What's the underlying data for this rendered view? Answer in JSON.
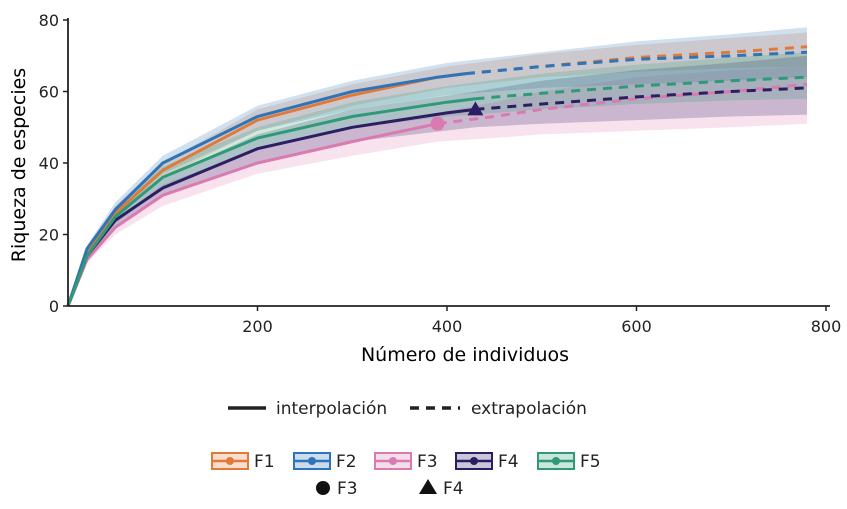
{
  "chart_data": {
    "type": "line",
    "xlabel": "Número de individuos",
    "ylabel": "Riqueza de especies",
    "xlim": [
      0,
      800
    ],
    "ylim": [
      0,
      80
    ],
    "x_ticks": [
      200,
      400,
      600,
      800
    ],
    "y_ticks": [
      0,
      20,
      40,
      60,
      80
    ],
    "grid": false,
    "legend_position": "bottom",
    "line_styles": {
      "interpolation_label": "interpolación",
      "extrapolation_label": "extrapolación"
    },
    "series": [
      {
        "name": "F1",
        "color": "#e07a3a",
        "interpolation": [
          [
            0,
            0
          ],
          [
            20,
            15
          ],
          [
            50,
            26
          ],
          [
            100,
            38
          ],
          [
            200,
            52
          ],
          [
            300,
            59
          ],
          [
            390,
            64
          ],
          [
            420,
            65
          ]
        ],
        "extrapolation": [
          [
            420,
            65
          ],
          [
            500,
            67
          ],
          [
            600,
            69.5
          ],
          [
            700,
            71
          ],
          [
            780,
            72.5
          ]
        ],
        "ci_lower": [
          [
            0,
            0
          ],
          [
            20,
            14
          ],
          [
            50,
            24
          ],
          [
            100,
            36
          ],
          [
            200,
            49
          ],
          [
            300,
            56
          ],
          [
            400,
            61
          ],
          [
            500,
            64
          ],
          [
            600,
            65.5
          ],
          [
            700,
            66.5
          ],
          [
            780,
            67
          ]
        ],
        "ci_upper": [
          [
            0,
            0
          ],
          [
            20,
            16
          ],
          [
            50,
            28
          ],
          [
            100,
            40
          ],
          [
            200,
            55
          ],
          [
            300,
            62
          ],
          [
            400,
            67
          ],
          [
            500,
            70.5
          ],
          [
            600,
            73
          ],
          [
            700,
            75
          ],
          [
            780,
            76.5
          ]
        ]
      },
      {
        "name": "F2",
        "color": "#2f73b8",
        "interpolation": [
          [
            0,
            0
          ],
          [
            20,
            16
          ],
          [
            50,
            27
          ],
          [
            100,
            40
          ],
          [
            200,
            53
          ],
          [
            300,
            60
          ],
          [
            390,
            64
          ],
          [
            420,
            65
          ]
        ],
        "extrapolation": [
          [
            420,
            65
          ],
          [
            500,
            67
          ],
          [
            600,
            69
          ],
          [
            700,
            70
          ],
          [
            780,
            71
          ]
        ],
        "ci_lower": [
          [
            0,
            0
          ],
          [
            20,
            15
          ],
          [
            50,
            25
          ],
          [
            100,
            37
          ],
          [
            200,
            49
          ],
          [
            300,
            55
          ],
          [
            400,
            59
          ],
          [
            500,
            61
          ],
          [
            600,
            62
          ],
          [
            700,
            63
          ],
          [
            780,
            64
          ]
        ],
        "ci_upper": [
          [
            0,
            0
          ],
          [
            20,
            17
          ],
          [
            50,
            29
          ],
          [
            100,
            42
          ],
          [
            200,
            56
          ],
          [
            300,
            63
          ],
          [
            400,
            68
          ],
          [
            500,
            71
          ],
          [
            600,
            74
          ],
          [
            700,
            76
          ],
          [
            780,
            78
          ]
        ]
      },
      {
        "name": "F3",
        "color": "#d97ab0",
        "interpolation": [
          [
            0,
            0
          ],
          [
            20,
            13
          ],
          [
            50,
            22
          ],
          [
            100,
            31
          ],
          [
            200,
            40
          ],
          [
            300,
            46
          ],
          [
            390,
            51
          ]
        ],
        "extrapolation": [
          [
            390,
            51
          ],
          [
            450,
            53
          ],
          [
            500,
            55
          ],
          [
            600,
            58
          ],
          [
            700,
            60
          ],
          [
            780,
            62
          ]
        ],
        "ci_lower": [
          [
            0,
            0
          ],
          [
            20,
            12
          ],
          [
            50,
            20
          ],
          [
            100,
            28
          ],
          [
            200,
            37
          ],
          [
            300,
            42
          ],
          [
            390,
            46
          ],
          [
            450,
            47
          ],
          [
            500,
            48
          ],
          [
            600,
            49
          ],
          [
            700,
            50
          ],
          [
            780,
            51
          ]
        ],
        "ci_upper": [
          [
            0,
            0
          ],
          [
            20,
            14
          ],
          [
            50,
            24
          ],
          [
            100,
            34
          ],
          [
            200,
            44
          ],
          [
            300,
            50
          ],
          [
            390,
            54
          ],
          [
            450,
            57
          ],
          [
            500,
            60
          ],
          [
            600,
            64
          ],
          [
            700,
            66
          ],
          [
            780,
            67
          ]
        ]
      },
      {
        "name": "F4",
        "color": "#2d1e64",
        "interpolation": [
          [
            0,
            0
          ],
          [
            20,
            14
          ],
          [
            50,
            24
          ],
          [
            100,
            33
          ],
          [
            200,
            44
          ],
          [
            300,
            50
          ],
          [
            400,
            54
          ],
          [
            430,
            55
          ]
        ],
        "extrapolation": [
          [
            430,
            55
          ],
          [
            500,
            56.5
          ],
          [
            600,
            58.5
          ],
          [
            700,
            60
          ],
          [
            780,
            61
          ]
        ],
        "ci_lower": [
          [
            0,
            0
          ],
          [
            20,
            13
          ],
          [
            50,
            22
          ],
          [
            100,
            31
          ],
          [
            200,
            40
          ],
          [
            300,
            46
          ],
          [
            430,
            50
          ],
          [
            500,
            51
          ],
          [
            600,
            52
          ],
          [
            700,
            53
          ],
          [
            780,
            53.5
          ]
        ],
        "ci_upper": [
          [
            0,
            0
          ],
          [
            20,
            15
          ],
          [
            50,
            26
          ],
          [
            100,
            36
          ],
          [
            200,
            48
          ],
          [
            300,
            55
          ],
          [
            430,
            60
          ],
          [
            500,
            63
          ],
          [
            600,
            66
          ],
          [
            700,
            68
          ],
          [
            780,
            70
          ]
        ]
      },
      {
        "name": "F5",
        "color": "#2e9a78",
        "interpolation": [
          [
            0,
            0
          ],
          [
            20,
            14
          ],
          [
            50,
            25
          ],
          [
            100,
            36
          ],
          [
            200,
            47
          ],
          [
            300,
            53
          ],
          [
            400,
            57
          ],
          [
            430,
            58
          ]
        ],
        "extrapolation": [
          [
            430,
            58
          ],
          [
            500,
            59.5
          ],
          [
            600,
            61.5
          ],
          [
            700,
            63
          ],
          [
            780,
            64
          ]
        ],
        "ci_lower": [
          [
            0,
            0
          ],
          [
            20,
            13
          ],
          [
            50,
            23
          ],
          [
            100,
            33
          ],
          [
            200,
            44
          ],
          [
            300,
            50
          ],
          [
            400,
            53
          ],
          [
            500,
            55
          ],
          [
            600,
            56.5
          ],
          [
            700,
            57.5
          ],
          [
            780,
            58
          ]
        ],
        "ci_upper": [
          [
            0,
            0
          ],
          [
            20,
            15
          ],
          [
            50,
            27
          ],
          [
            100,
            39
          ],
          [
            200,
            50
          ],
          [
            300,
            57
          ],
          [
            400,
            61.5
          ],
          [
            500,
            65
          ],
          [
            600,
            67.5
          ],
          [
            700,
            69.5
          ],
          [
            780,
            71
          ]
        ]
      }
    ],
    "markers": [
      {
        "name": "F3",
        "shape": "circle",
        "x": 390,
        "y": 51,
        "color": "#d97ab0"
      },
      {
        "name": "F4",
        "shape": "triangle",
        "x": 430,
        "y": 55,
        "color": "#2d1e64"
      }
    ]
  }
}
